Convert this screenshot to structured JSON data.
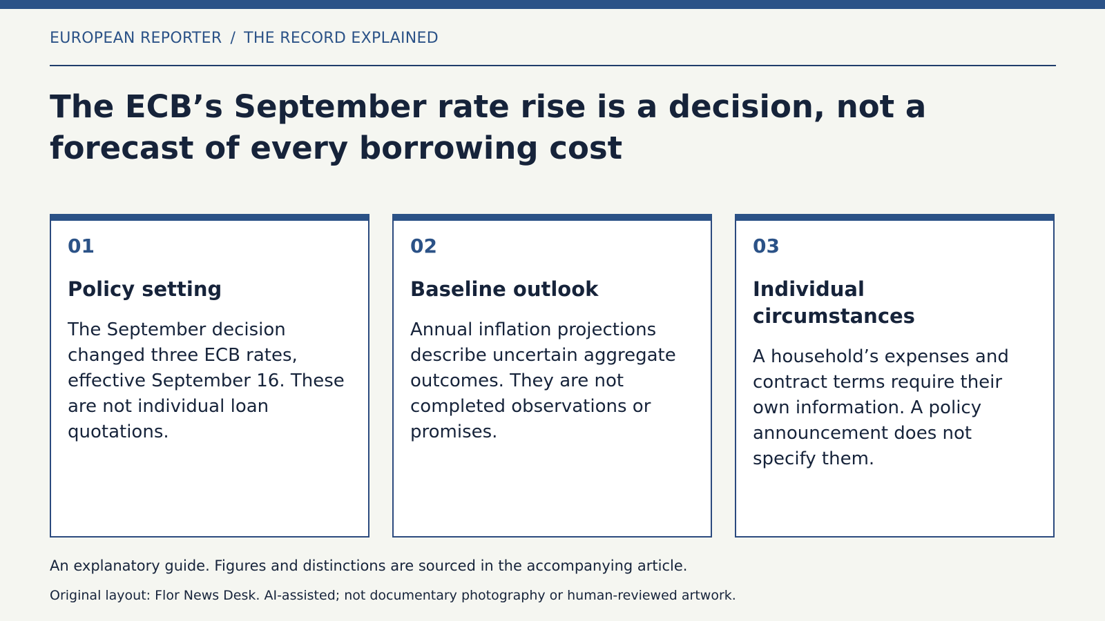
{
  "header": {
    "publication": "EUROPEAN REPORTER",
    "separator": "/",
    "section": "THE RECORD EXPLAINED"
  },
  "headline": "The ECB’s September rate rise is a decision, not a forecast of every borrowing cost",
  "cards": [
    {
      "number": "01",
      "title": "Policy setting",
      "body": "The September decision changed three ECB rates, effective September 16. These are not individual loan quotations."
    },
    {
      "number": "02",
      "title": "Baseline outlook",
      "body": "Annual inflation projections describe uncertain aggregate outcomes. They are not completed observations or promises."
    },
    {
      "number": "03",
      "title": "Individual circumstances",
      "body": "A household’s expenses and contract terms require their own information. A policy announcement does not specify them."
    }
  ],
  "footer": {
    "note": "An explanatory guide. Figures and distinctions are sourced in the accompanying article.",
    "credit": "Original layout: Flor News Desk. AI-assisted; not documentary photography or human-reviewed artwork."
  },
  "colors": {
    "accent": "#2b5287",
    "background": "#f5f6f1",
    "text": "#16233a",
    "card": "#ffffff"
  }
}
